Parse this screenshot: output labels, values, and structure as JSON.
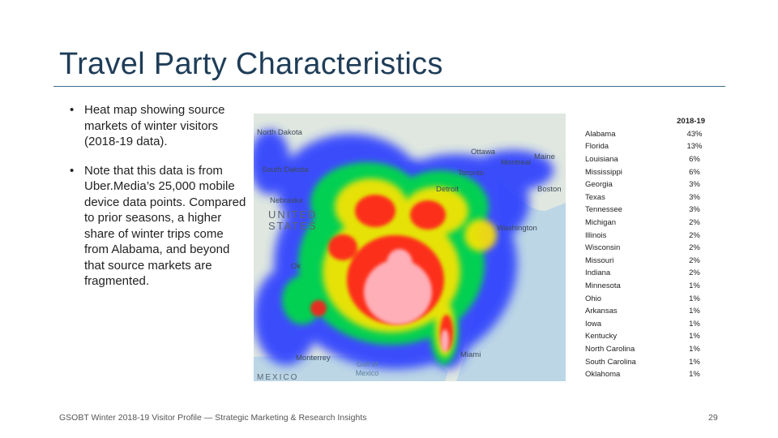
{
  "slide": {
    "title": "Travel Party Characteristics",
    "bullets": [
      "Heat map showing source markets of winter visitors (2018-19 data).",
      "Note that this data is from Uber.Media’s 25,000 mobile device data points. Compared to prior seasons, a higher share of winter trips come from Alabama, and beyond that source markets are fragmented."
    ],
    "bullet_glyph": "•",
    "footer": "GSOBT Winter 2018-19 Visitor Profile — Strategic Marketing & Research Insights",
    "page_number": "29"
  },
  "map": {
    "labels": {
      "north_dakota": "North Dakota",
      "ottawa": "Ottawa",
      "montreal": "Montreal",
      "maine": "Maine",
      "south_dakota": "South Dakota",
      "toronto": "Toronto",
      "detroit": "Detroit",
      "boston": "Boston",
      "nebraska": "Nebraska",
      "united_states": "UNITED STATES",
      "washington": "Washington",
      "ok": "Ok",
      "monterrey": "Monterrey",
      "miami": "Miami",
      "gulf_of_mexico": "Gulf of Mexico",
      "mexico": "MEXICO"
    },
    "heat_colors": {
      "low": "#2b3cff",
      "mid": "#00e04a",
      "high": "#ffea00",
      "peak": "#ff1a1a",
      "core": "#ffb6c1"
    }
  },
  "table": {
    "column_header": "2018-19",
    "rows": [
      {
        "state": "Alabama",
        "pct": "43%"
      },
      {
        "state": "Florida",
        "pct": "13%"
      },
      {
        "state": "Louisiana",
        "pct": "6%"
      },
      {
        "state": "Mississippi",
        "pct": "6%"
      },
      {
        "state": "Georgia",
        "pct": "3%"
      },
      {
        "state": "Texas",
        "pct": "3%"
      },
      {
        "state": "Tennessee",
        "pct": "3%"
      },
      {
        "state": "Michigan",
        "pct": "2%"
      },
      {
        "state": "Illinois",
        "pct": "2%"
      },
      {
        "state": "Wisconsin",
        "pct": "2%"
      },
      {
        "state": "Missouri",
        "pct": "2%"
      },
      {
        "state": "Indiana",
        "pct": "2%"
      },
      {
        "state": "Minnesota",
        "pct": "1%"
      },
      {
        "state": "Ohio",
        "pct": "1%"
      },
      {
        "state": "Arkansas",
        "pct": "1%"
      },
      {
        "state": "Iowa",
        "pct": "1%"
      },
      {
        "state": "Kentucky",
        "pct": "1%"
      },
      {
        "state": "North Carolina",
        "pct": "1%"
      },
      {
        "state": "South Carolina",
        "pct": "1%"
      },
      {
        "state": "Oklahoma",
        "pct": "1%"
      }
    ]
  }
}
